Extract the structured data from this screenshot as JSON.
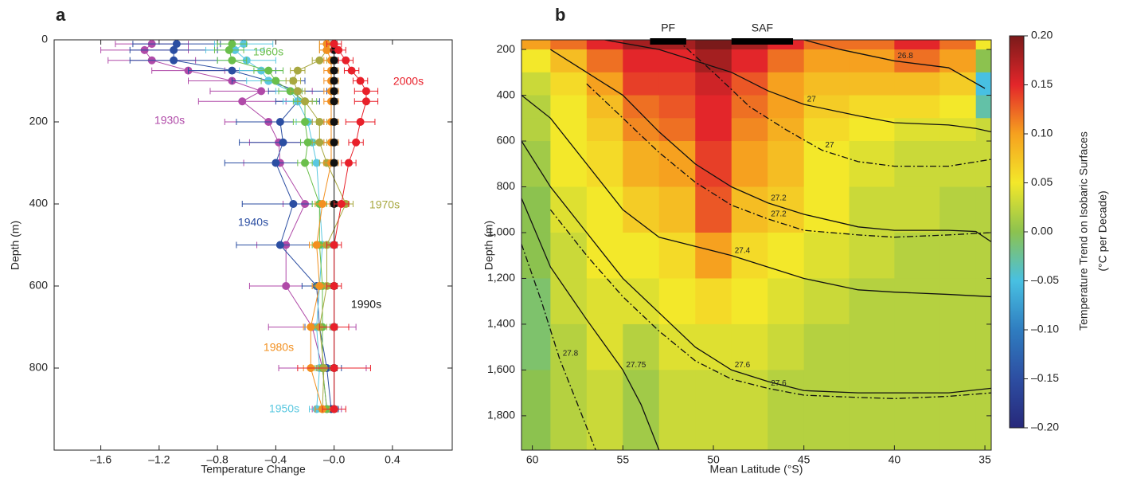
{
  "chart_data": [
    {
      "type": "errorbar_line",
      "panel": "a",
      "xlabel": "Temperature Change",
      "ylabel": "Depth (m)",
      "xlim": [
        -1.92,
        0.81
      ],
      "ylim": [
        0,
        1000
      ],
      "y_inverted": true,
      "xticks": [
        {
          "value": -1.6,
          "label": "–1.6"
        },
        {
          "value": -1.2,
          "label": "–1.2"
        },
        {
          "value": -0.8,
          "label": "–0.8"
        },
        {
          "value": -0.4,
          "label": "–0.4"
        },
        {
          "value": 0,
          "label": "–0.0"
        },
        0.4
      ],
      "yticks": [
        0,
        200,
        400,
        600,
        800
      ],
      "y": [
        10,
        25,
        50,
        75,
        100,
        125,
        150,
        200,
        250,
        300,
        400,
        500,
        600,
        700,
        800,
        900
      ],
      "series": [
        {
          "name": "1930s",
          "color": "#b04aa8",
          "values": [
            -1.25,
            -1.3,
            -1.25,
            -1.0,
            -0.7,
            -0.5,
            -0.63,
            -0.45,
            -0.38,
            -0.37,
            -0.2,
            -0.33,
            -0.33,
            -0.15,
            -0.08,
            -0.05
          ],
          "errors": [
            0.25,
            0.3,
            0.3,
            0.25,
            0.3,
            0.35,
            0.3,
            0.3,
            0.2,
            0.25,
            0.15,
            0.2,
            0.25,
            0.3,
            0.3,
            0.1
          ]
        },
        {
          "name": "1940s",
          "color": "#2b4ea2",
          "values": [
            -1.08,
            -1.1,
            -1.1,
            -0.7,
            -0.45,
            -0.25,
            -0.25,
            -0.37,
            -0.35,
            -0.4,
            -0.28,
            -0.37,
            -0.12,
            -0.1,
            -0.05,
            -0.02
          ],
          "errors": [
            0.3,
            0.3,
            0.3,
            0.3,
            0.25,
            0.2,
            0.15,
            0.3,
            0.3,
            0.35,
            0.35,
            0.3,
            0.1,
            0.1,
            0.1,
            0.05
          ]
        },
        {
          "name": "1950s",
          "color": "#5ac8e0",
          "values": [
            -0.62,
            -0.68,
            -0.6,
            -0.5,
            -0.45,
            -0.3,
            -0.25,
            -0.18,
            -0.15,
            -0.12,
            -0.1,
            -0.08,
            -0.1,
            -0.12,
            -0.1,
            -0.12
          ],
          "errors": [
            0.2,
            0.2,
            0.2,
            0.15,
            0.15,
            0.1,
            0.1,
            0.08,
            0.08,
            0.08,
            0.05,
            0.05,
            0.05,
            0.05,
            0.05,
            0.05
          ]
        },
        {
          "name": "1960s",
          "color": "#6abf4b",
          "values": [
            -0.7,
            -0.72,
            -0.7,
            -0.45,
            -0.4,
            -0.3,
            -0.2,
            -0.2,
            -0.18,
            -0.2,
            -0.1,
            -0.1,
            -0.08,
            -0.08,
            -0.08,
            -0.05
          ],
          "errors": [
            0.1,
            0.1,
            0.1,
            0.1,
            0.1,
            0.08,
            0.08,
            0.08,
            0.05,
            0.05,
            0.05,
            0.05,
            0.05,
            0.05,
            0.05,
            0.05
          ]
        },
        {
          "name": "1970s",
          "color": "#a8a840",
          "values": [
            -0.05,
            -0.05,
            -0.1,
            -0.25,
            -0.28,
            -0.25,
            -0.2,
            -0.1,
            -0.1,
            -0.05,
            0.08,
            -0.05,
            -0.05,
            -0.1,
            -0.07,
            -0.08
          ],
          "errors": [
            0.05,
            0.05,
            0.05,
            0.05,
            0.05,
            0.05,
            0.05,
            0.05,
            0.05,
            0.05,
            0.05,
            0.05,
            0.05,
            0.05,
            0.05,
            0.05
          ]
        },
        {
          "name": "1980s",
          "color": "#f29020",
          "values": [
            -0.05,
            -0.05,
            -0.02,
            -0.02,
            -0.02,
            -0.02,
            -0.02,
            -0.02,
            -0.02,
            -0.02,
            -0.08,
            -0.12,
            -0.1,
            -0.16,
            -0.16,
            -0.08
          ],
          "errors": [
            0.05,
            0.05,
            0.05,
            0.05,
            0.05,
            0.05,
            0.05,
            0.05,
            0.05,
            0.05,
            0.05,
            0.05,
            0.05,
            0.05,
            0.05,
            0.05
          ]
        },
        {
          "name": "1990s",
          "color": "#111111",
          "values": [
            0,
            0,
            0,
            0,
            0,
            0,
            0,
            0,
            0,
            0,
            0,
            0,
            0,
            0,
            0,
            0
          ],
          "errors": [
            0.02,
            0.02,
            0.02,
            0.02,
            0.02,
            0.02,
            0.02,
            0.02,
            0.02,
            0.02,
            0.02,
            0.02,
            0.02,
            0.02,
            0.02,
            0.02
          ]
        },
        {
          "name": "2000s",
          "color": "#e8202a",
          "values": [
            0,
            0.03,
            0.08,
            0.12,
            0.18,
            0.22,
            0.22,
            0.18,
            0.15,
            0.1,
            0.05,
            0,
            0,
            0,
            0,
            0
          ],
          "errors": [
            0.05,
            0.05,
            0.05,
            0.05,
            0.05,
            0.08,
            0.08,
            0.1,
            0.05,
            0.05,
            0.05,
            0.05,
            0.05,
            0.1,
            0.25,
            0.08
          ]
        }
      ]
    },
    {
      "type": "heatmap",
      "panel": "b",
      "xlabel": "Mean Latitude (°S)",
      "ylabel": "Depth (m)",
      "xlim": [
        60.6,
        34.65
      ],
      "ylim": [
        158,
        1950
      ],
      "y_inverted": true,
      "xticks": [
        60,
        55,
        50,
        45,
        40,
        35
      ],
      "yticks": [
        200,
        400,
        600,
        800,
        {
          "value": 1000,
          "label": "1,000"
        },
        {
          "value": 1200,
          "label": "1,200"
        },
        {
          "value": 1400,
          "label": "1,400"
        },
        {
          "value": 1600,
          "label": "1,600"
        },
        {
          "value": 1800,
          "label": "1,800"
        }
      ],
      "x_edges": [
        60.6,
        59,
        57,
        55,
        53,
        51,
        49,
        47,
        45,
        42.5,
        40,
        37.5,
        35.5,
        34.65
      ],
      "y_edges": [
        158,
        200,
        300,
        400,
        500,
        600,
        800,
        1000,
        1200,
        1400,
        1600,
        1950
      ],
      "values": [
        [
          0.1,
          0.12,
          0.15,
          0.18,
          0.18,
          0.2,
          0.18,
          0.15,
          0.12,
          0.12,
          0.15,
          0.12,
          0.05
        ],
        [
          0.05,
          0.08,
          0.12,
          0.15,
          0.15,
          0.18,
          0.15,
          0.12,
          0.1,
          0.1,
          0.12,
          0.1,
          0
        ],
        [
          0.03,
          0.06,
          0.1,
          0.14,
          0.14,
          0.16,
          0.13,
          0.1,
          0.08,
          0.08,
          0.08,
          0.07,
          -0.05
        ],
        [
          0.02,
          0.05,
          0.08,
          0.12,
          0.13,
          0.15,
          0.12,
          0.1,
          0.07,
          0.06,
          0.06,
          0.05,
          -0.03
        ],
        [
          0.02,
          0.05,
          0.07,
          0.11,
          0.12,
          0.15,
          0.11,
          0.09,
          0.06,
          0.05,
          0.04,
          0.04,
          0.03
        ],
        [
          0.01,
          0.05,
          0.06,
          0.09,
          0.1,
          0.14,
          0.1,
          0.08,
          0.05,
          0.04,
          0.03,
          0.03,
          0.03
        ],
        [
          0,
          0.04,
          0.05,
          0.07,
          0.08,
          0.13,
          0.08,
          0.07,
          0.05,
          0.03,
          0.03,
          0.02,
          0.02
        ],
        [
          0,
          0.03,
          0.05,
          0.05,
          0.06,
          0.1,
          0.06,
          0.05,
          0.04,
          0.03,
          0.02,
          0.02,
          0.02
        ],
        [
          -0.01,
          0.03,
          0.04,
          0.04,
          0.05,
          0.06,
          0.05,
          0.04,
          0.03,
          0.02,
          0.02,
          0.02,
          0.02
        ],
        [
          -0.01,
          0.02,
          0.04,
          0.02,
          0.04,
          0.04,
          0.04,
          0.03,
          0.02,
          0.02,
          0.02,
          0.02,
          0.02
        ],
        [
          0,
          0.02,
          0.03,
          0.01,
          0.03,
          0.03,
          0.03,
          0.02,
          0.02,
          0.02,
          0.02,
          0.02,
          0.02
        ]
      ],
      "colorbar": {
        "label": [
          "Temperature Trend on Isobaric Surfaces",
          "(°C per Decade)"
        ],
        "lim": [
          -0.2,
          0.2
        ],
        "ticks": [
          {
            "value": 0.2,
            "label": "0.20"
          },
          {
            "value": 0.15,
            "label": "0.15"
          },
          {
            "value": 0.1,
            "label": "0.10"
          },
          {
            "value": 0.05,
            "label": "0.05"
          },
          {
            "value": 0,
            "label": "0.00"
          },
          {
            "value": -0.05,
            "label": "–0.05"
          },
          {
            "value": -0.1,
            "label": "–0.10"
          },
          {
            "value": -0.15,
            "label": "–0.15"
          },
          {
            "value": -0.2,
            "label": "–0.20"
          }
        ],
        "colormap": [
          "#27287a",
          "#2d4ea2",
          "#2f7dc0",
          "#48c0e2",
          "#8cc24f",
          "#f3e82a",
          "#f6a11f",
          "#e3262a",
          "#7a1a1a"
        ]
      },
      "fronts": [
        {
          "name": "PF",
          "x": [
            53.5,
            51.5
          ]
        },
        {
          "name": "SAF",
          "x": [
            49,
            45.6
          ]
        }
      ],
      "contours": [
        {
          "level": 26.8,
          "style": "solid",
          "x": [
            45,
            43,
            40,
            37,
            35
          ],
          "y": [
            158,
            200,
            250,
            280,
            370
          ]
        },
        {
          "level": 27,
          "style": "solid",
          "x": [
            56,
            53,
            51,
            49,
            47,
            45,
            42,
            40,
            37,
            35.5,
            34.65
          ],
          "y": [
            158,
            200,
            250,
            300,
            380,
            440,
            490,
            520,
            530,
            545,
            560
          ]
        },
        {
          "level": 27.2,
          "style": "solid",
          "x": [
            59,
            57,
            55,
            53,
            51,
            49,
            47,
            45,
            42,
            40,
            37,
            35.5,
            34.65
          ],
          "y": [
            200,
            300,
            400,
            560,
            700,
            800,
            870,
            920,
            975,
            990,
            990,
            995,
            1040
          ]
        },
        {
          "level": 27.4,
          "style": "solid",
          "x": [
            60.6,
            59,
            57,
            55,
            53,
            51,
            49,
            47,
            45,
            42,
            40,
            37,
            34.65
          ],
          "y": [
            400,
            500,
            700,
            900,
            1020,
            1060,
            1100,
            1150,
            1200,
            1250,
            1260,
            1270,
            1280
          ]
        },
        {
          "level": 27.6,
          "style": "solid",
          "x": [
            60.6,
            59,
            57,
            55,
            53,
            51,
            49,
            47,
            45,
            42,
            40,
            37,
            34.65
          ],
          "y": [
            600,
            800,
            1000,
            1200,
            1350,
            1500,
            1600,
            1650,
            1690,
            1700,
            1700,
            1700,
            1680
          ]
        },
        {
          "level": 27.75,
          "style": "solid",
          "x": [
            60.6,
            59,
            57,
            55,
            54,
            53
          ],
          "y": [
            850,
            1150,
            1380,
            1600,
            1750,
            1950
          ]
        },
        {
          "level": 27,
          "style": "dashdot",
          "x": [
            52,
            50,
            48,
            46,
            44,
            42,
            40,
            37,
            34.65
          ],
          "y": [
            158,
            300,
            450,
            550,
            640,
            690,
            710,
            710,
            680
          ]
        },
        {
          "level": 27.2,
          "style": "dashdot",
          "x": [
            57,
            55,
            53,
            51,
            49,
            47,
            45,
            42,
            40,
            37,
            34.65
          ],
          "y": [
            350,
            500,
            650,
            780,
            880,
            940,
            990,
            1010,
            1020,
            1010,
            1000
          ]
        },
        {
          "level": 27.6,
          "style": "dashdot",
          "x": [
            59,
            57,
            55,
            53,
            51,
            49,
            47,
            45,
            42,
            40,
            37,
            34.65
          ],
          "y": [
            900,
            1100,
            1280,
            1430,
            1560,
            1640,
            1680,
            1710,
            1720,
            1725,
            1715,
            1700
          ]
        },
        {
          "level": 27.8,
          "style": "dashdot",
          "x": [
            60.6,
            59.5,
            58.5,
            57.5,
            56.5
          ],
          "y": [
            1050,
            1300,
            1550,
            1750,
            1950
          ]
        }
      ]
    }
  ]
}
